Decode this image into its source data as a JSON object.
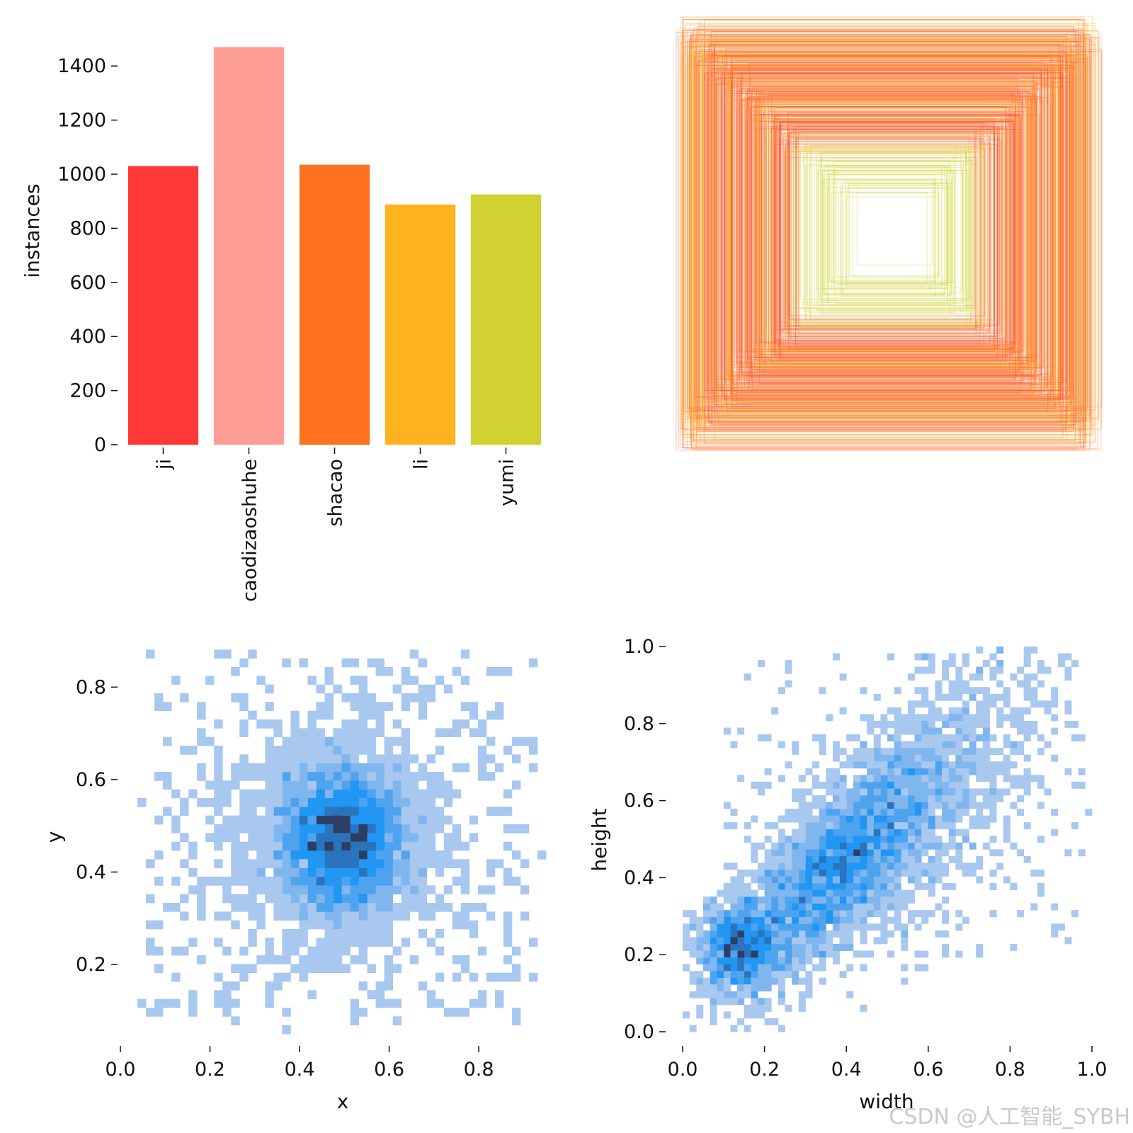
{
  "chart_data": [
    {
      "type": "bar",
      "categories": [
        "ji",
        "caodizaoshuhe",
        "shacao",
        "li",
        "yumi"
      ],
      "values": [
        1030,
        1470,
        1035,
        888,
        925
      ],
      "colors": [
        "#ff3838",
        "#ff9d97",
        "#ff701f",
        "#ffb21d",
        "#cfd231"
      ],
      "ylabel": "instances",
      "ylim": [
        0,
        1500
      ],
      "yticks": [
        0,
        200,
        400,
        600,
        800,
        1000,
        1200,
        1400
      ],
      "ytick_labels": [
        "0",
        "200",
        "400",
        "600",
        "800",
        "1000",
        "1200",
        "1400"
      ],
      "grid": false
    },
    {
      "type": "box_overlay",
      "description_color_range": [
        "#ff3838",
        "#ff701f",
        "#ffb21d",
        "#cfd231"
      ],
      "axes": "off"
    },
    {
      "type": "heatmap",
      "xlabel": "x",
      "ylabel": "y",
      "xlim": [
        0,
        0.95
      ],
      "ylim": [
        0.05,
        0.9
      ],
      "xticks": [
        0.0,
        0.2,
        0.4,
        0.6,
        0.8
      ],
      "xtick_labels": [
        "0.0",
        "0.2",
        "0.4",
        "0.6",
        "0.8"
      ],
      "yticks": [
        0.2,
        0.4,
        0.6,
        0.8
      ],
      "ytick_labels": [
        "0.2",
        "0.4",
        "0.6",
        "0.8"
      ],
      "density_center": [
        0.5,
        0.47
      ],
      "colors": [
        "#a8c8f0",
        "#2196f3",
        "#2c3e64"
      ]
    },
    {
      "type": "heatmap",
      "xlabel": "width",
      "ylabel": "height",
      "xlim": [
        0,
        1.0
      ],
      "ylim": [
        0,
        1.0
      ],
      "xticks": [
        0.0,
        0.2,
        0.4,
        0.6,
        0.8,
        1.0
      ],
      "xtick_labels": [
        "0.0",
        "0.2",
        "0.4",
        "0.6",
        "0.8",
        "1.0"
      ],
      "yticks": [
        0.0,
        0.2,
        0.4,
        0.6,
        0.8,
        1.0
      ],
      "ytick_labels": [
        "0.0",
        "0.2",
        "0.4",
        "0.6",
        "0.8",
        "1.0"
      ],
      "density_ridge": "width ≈ height, densest near (0.4, 0.45)",
      "colors": [
        "#a8c8f0",
        "#2196f3",
        "#2c3e64"
      ]
    }
  ],
  "watermark": "CSDN @人工智能_SYBH"
}
